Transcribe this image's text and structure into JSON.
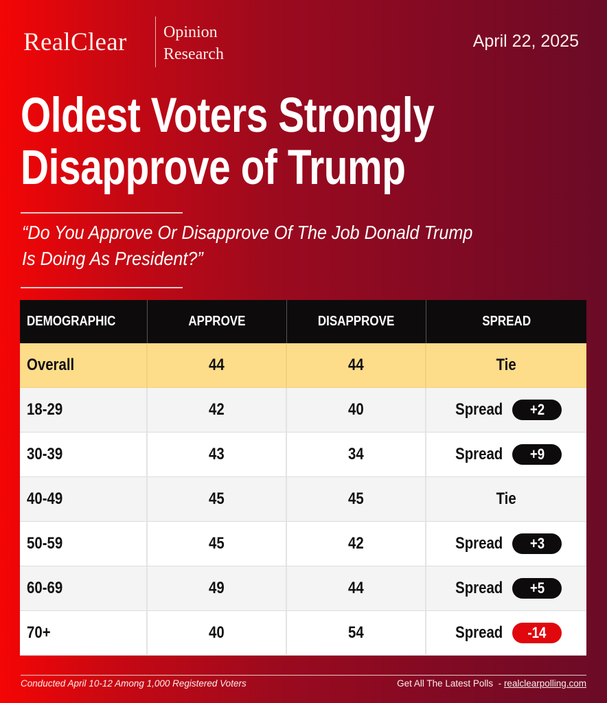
{
  "header": {
    "logo_main": "RealClear",
    "logo_sub_line1": "Opinion",
    "logo_sub_line2": "Research",
    "date": "April 22, 2025"
  },
  "title_line1": "Oldest Voters Strongly",
  "title_line2": "Disapprove of Trump",
  "question_line1": "“Do You Approve Or Disapprove Of The Job Donald Trump",
  "question_line2": "Is Doing As President?”",
  "colors": {
    "accent_red": "#e0080d",
    "highlight_row": "#fddc8a",
    "header_bg": "#0d0b0c",
    "positive_pill": "#0d0b0c",
    "negative_pill": "#e0080d"
  },
  "table": {
    "columns": [
      "DEMOGRAPHIC",
      "APPROVE",
      "DISAPPROVE",
      "SPREAD"
    ],
    "rows": [
      {
        "demographic": "Overall",
        "approve": "44",
        "disapprove": "44",
        "spread_text": "Tie",
        "spread_value": "",
        "spread_sign": "tie",
        "highlight": true
      },
      {
        "demographic": "18-29",
        "approve": "42",
        "disapprove": "40",
        "spread_text": "Spread",
        "spread_value": "+2",
        "spread_sign": "pos"
      },
      {
        "demographic": "30-39",
        "approve": "43",
        "disapprove": "34",
        "spread_text": "Spread",
        "spread_value": "+9",
        "spread_sign": "pos"
      },
      {
        "demographic": "40-49",
        "approve": "45",
        "disapprove": "45",
        "spread_text": "Tie",
        "spread_value": "",
        "spread_sign": "tie"
      },
      {
        "demographic": "50-59",
        "approve": "45",
        "disapprove": "42",
        "spread_text": "Spread",
        "spread_value": "+3",
        "spread_sign": "pos"
      },
      {
        "demographic": "60-69",
        "approve": "49",
        "disapprove": "44",
        "spread_text": "Spread",
        "spread_value": "+5",
        "spread_sign": "pos"
      },
      {
        "demographic": "70+",
        "approve": "40",
        "disapprove": "54",
        "spread_text": "Spread",
        "spread_value": "-14",
        "spread_sign": "neg"
      }
    ]
  },
  "chart_data": {
    "type": "table",
    "title": "Oldest Voters Strongly Disapprove of Trump",
    "subtitle": "“Do You Approve Or Disapprove Of The Job Donald Trump Is Doing As President?”",
    "columns": [
      "DEMOGRAPHIC",
      "APPROVE",
      "DISAPPROVE",
      "SPREAD"
    ],
    "categories": [
      "Overall",
      "18-29",
      "30-39",
      "40-49",
      "50-59",
      "60-69",
      "70+"
    ],
    "series": [
      {
        "name": "Approve",
        "values": [
          44,
          42,
          43,
          45,
          45,
          49,
          40
        ]
      },
      {
        "name": "Disapprove",
        "values": [
          44,
          40,
          34,
          45,
          42,
          44,
          54
        ]
      },
      {
        "name": "Spread",
        "values": [
          "Tie",
          "+2",
          "+9",
          "Tie",
          "+3",
          "+5",
          "-14"
        ]
      }
    ]
  },
  "footer": {
    "methodology": "Conducted April 10-12 Among 1,000 Registered Voters",
    "cta_text": "Get All The Latest Polls  - ",
    "cta_link": "realclearpolling.com"
  }
}
